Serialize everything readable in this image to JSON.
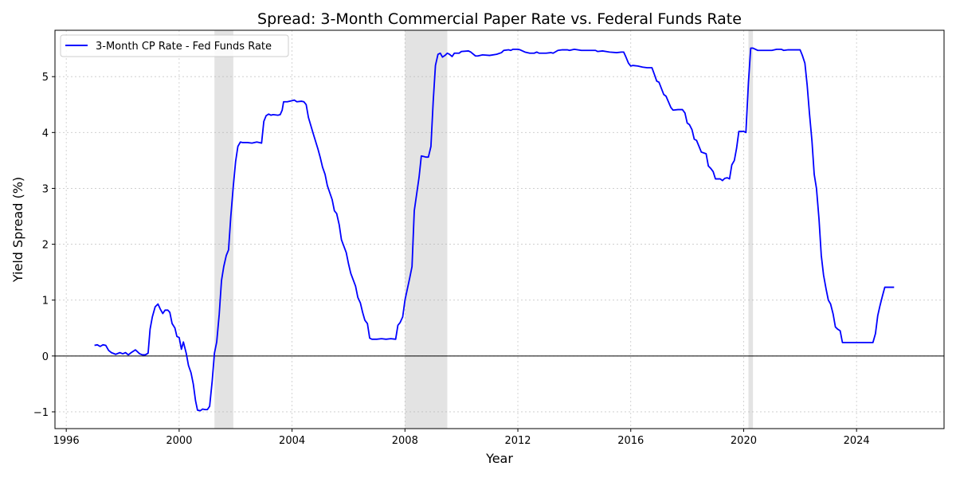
{
  "chart_data": {
    "type": "line",
    "title": "Spread: 3-Month Commercial Paper Rate vs. Federal Funds Rate",
    "xlabel": "Year",
    "ylabel": "Yield Spread (%)",
    "xlim": [
      1995.6,
      2027.1
    ],
    "ylim": [
      -1.3,
      5.83
    ],
    "x_ticks": [
      1996,
      2000,
      2004,
      2008,
      2012,
      2016,
      2020,
      2024
    ],
    "y_ticks": [
      -1,
      0,
      1,
      2,
      3,
      4,
      5
    ],
    "y_tick_labels": [
      "−1",
      "0",
      "1",
      "2",
      "3",
      "4",
      "5"
    ],
    "grid": true,
    "zero_line": 0,
    "legend_position": "upper-left",
    "shaded_regions": [
      {
        "start": 2001.25,
        "end": 2001.92
      },
      {
        "start": 2008.0,
        "end": 2009.5
      },
      {
        "start": 2020.17,
        "end": 2020.33
      }
    ],
    "series": [
      {
        "name": "3-Month CP Rate - Fed Funds Rate",
        "color": "#0000ff",
        "points": [
          [
            1997.0,
            0.19
          ],
          [
            1997.1,
            0.2
          ],
          [
            1997.2,
            0.17
          ],
          [
            1997.3,
            0.2
          ],
          [
            1997.4,
            0.19
          ],
          [
            1997.5,
            0.1
          ],
          [
            1997.6,
            0.06
          ],
          [
            1997.75,
            0.03
          ],
          [
            1997.9,
            0.06
          ],
          [
            1998.0,
            0.04
          ],
          [
            1998.1,
            0.06
          ],
          [
            1998.2,
            0.02
          ],
          [
            1998.3,
            0.06
          ],
          [
            1998.45,
            0.11
          ],
          [
            1998.6,
            0.04
          ],
          [
            1998.7,
            0.02
          ],
          [
            1998.8,
            0.02
          ],
          [
            1998.9,
            0.05
          ],
          [
            1998.97,
            0.48
          ],
          [
            1999.05,
            0.7
          ],
          [
            1999.15,
            0.88
          ],
          [
            1999.25,
            0.93
          ],
          [
            1999.33,
            0.84
          ],
          [
            1999.42,
            0.76
          ],
          [
            1999.5,
            0.82
          ],
          [
            1999.6,
            0.82
          ],
          [
            1999.67,
            0.78
          ],
          [
            1999.75,
            0.58
          ],
          [
            1999.85,
            0.5
          ],
          [
            1999.92,
            0.35
          ],
          [
            2000.0,
            0.33
          ],
          [
            2000.08,
            0.12
          ],
          [
            2000.15,
            0.25
          ],
          [
            2000.25,
            0.05
          ],
          [
            2000.33,
            -0.17
          ],
          [
            2000.42,
            -0.3
          ],
          [
            2000.5,
            -0.5
          ],
          [
            2000.58,
            -0.8
          ],
          [
            2000.65,
            -0.97
          ],
          [
            2000.75,
            -0.98
          ],
          [
            2000.83,
            -0.95
          ],
          [
            2000.92,
            -0.96
          ],
          [
            2001.0,
            -0.96
          ],
          [
            2001.08,
            -0.9
          ],
          [
            2001.17,
            -0.45
          ],
          [
            2001.25,
            0.05
          ],
          [
            2001.33,
            0.25
          ],
          [
            2001.42,
            0.75
          ],
          [
            2001.5,
            1.35
          ],
          [
            2001.58,
            1.6
          ],
          [
            2001.67,
            1.8
          ],
          [
            2001.75,
            1.9
          ],
          [
            2001.83,
            2.5
          ],
          [
            2001.92,
            3.05
          ],
          [
            2002.0,
            3.48
          ],
          [
            2002.08,
            3.75
          ],
          [
            2002.17,
            3.83
          ],
          [
            2002.25,
            3.82
          ],
          [
            2002.42,
            3.82
          ],
          [
            2002.58,
            3.81
          ],
          [
            2002.75,
            3.83
          ],
          [
            2002.85,
            3.82
          ],
          [
            2002.92,
            3.81
          ],
          [
            2003.0,
            4.2
          ],
          [
            2003.08,
            4.3
          ],
          [
            2003.17,
            4.33
          ],
          [
            2003.25,
            4.31
          ],
          [
            2003.33,
            4.32
          ],
          [
            2003.5,
            4.31
          ],
          [
            2003.58,
            4.32
          ],
          [
            2003.65,
            4.4
          ],
          [
            2003.7,
            4.55
          ],
          [
            2003.83,
            4.55
          ],
          [
            2004.0,
            4.57
          ],
          [
            2004.08,
            4.58
          ],
          [
            2004.17,
            4.55
          ],
          [
            2004.33,
            4.56
          ],
          [
            2004.42,
            4.55
          ],
          [
            2004.5,
            4.5
          ],
          [
            2004.58,
            4.27
          ],
          [
            2004.75,
            3.98
          ],
          [
            2004.92,
            3.7
          ],
          [
            2005.0,
            3.55
          ],
          [
            2005.08,
            3.38
          ],
          [
            2005.17,
            3.25
          ],
          [
            2005.25,
            3.05
          ],
          [
            2005.42,
            2.8
          ],
          [
            2005.5,
            2.6
          ],
          [
            2005.58,
            2.55
          ],
          [
            2005.67,
            2.35
          ],
          [
            2005.75,
            2.08
          ],
          [
            2005.92,
            1.85
          ],
          [
            2006.0,
            1.65
          ],
          [
            2006.08,
            1.48
          ],
          [
            2006.25,
            1.25
          ],
          [
            2006.33,
            1.05
          ],
          [
            2006.42,
            0.95
          ],
          [
            2006.5,
            0.78
          ],
          [
            2006.58,
            0.64
          ],
          [
            2006.67,
            0.58
          ],
          [
            2006.75,
            0.32
          ],
          [
            2006.83,
            0.3
          ],
          [
            2007.0,
            0.3
          ],
          [
            2007.17,
            0.31
          ],
          [
            2007.33,
            0.3
          ],
          [
            2007.5,
            0.31
          ],
          [
            2007.67,
            0.3
          ],
          [
            2007.75,
            0.55
          ],
          [
            2007.83,
            0.6
          ],
          [
            2007.92,
            0.7
          ],
          [
            2008.0,
            1.0
          ],
          [
            2008.17,
            1.4
          ],
          [
            2008.25,
            1.6
          ],
          [
            2008.33,
            2.6
          ],
          [
            2008.5,
            3.2
          ],
          [
            2008.58,
            3.58
          ],
          [
            2008.67,
            3.57
          ],
          [
            2008.75,
            3.56
          ],
          [
            2008.83,
            3.56
          ],
          [
            2008.92,
            3.75
          ],
          [
            2009.0,
            4.55
          ],
          [
            2009.08,
            5.2
          ],
          [
            2009.17,
            5.4
          ],
          [
            2009.25,
            5.42
          ],
          [
            2009.33,
            5.35
          ],
          [
            2009.42,
            5.38
          ],
          [
            2009.5,
            5.42
          ],
          [
            2009.58,
            5.4
          ],
          [
            2009.67,
            5.36
          ],
          [
            2009.75,
            5.42
          ],
          [
            2009.92,
            5.42
          ],
          [
            2010.0,
            5.45
          ],
          [
            2010.25,
            5.46
          ],
          [
            2010.33,
            5.44
          ],
          [
            2010.5,
            5.37
          ],
          [
            2010.58,
            5.37
          ],
          [
            2010.75,
            5.39
          ],
          [
            2011.0,
            5.38
          ],
          [
            2011.25,
            5.4
          ],
          [
            2011.42,
            5.43
          ],
          [
            2011.5,
            5.47
          ],
          [
            2011.67,
            5.48
          ],
          [
            2011.75,
            5.47
          ],
          [
            2011.83,
            5.49
          ],
          [
            2012.0,
            5.49
          ],
          [
            2012.08,
            5.48
          ],
          [
            2012.25,
            5.44
          ],
          [
            2012.42,
            5.42
          ],
          [
            2012.58,
            5.42
          ],
          [
            2012.67,
            5.44
          ],
          [
            2012.75,
            5.42
          ],
          [
            2013.0,
            5.42
          ],
          [
            2013.17,
            5.43
          ],
          [
            2013.25,
            5.42
          ],
          [
            2013.42,
            5.47
          ],
          [
            2013.58,
            5.48
          ],
          [
            2013.75,
            5.48
          ],
          [
            2013.83,
            5.47
          ],
          [
            2014.0,
            5.49
          ],
          [
            2014.25,
            5.47
          ],
          [
            2014.42,
            5.47
          ],
          [
            2014.58,
            5.47
          ],
          [
            2014.75,
            5.47
          ],
          [
            2014.83,
            5.45
          ],
          [
            2015.0,
            5.46
          ],
          [
            2015.25,
            5.44
          ],
          [
            2015.5,
            5.43
          ],
          [
            2015.67,
            5.44
          ],
          [
            2015.75,
            5.44
          ],
          [
            2015.83,
            5.35
          ],
          [
            2015.92,
            5.24
          ],
          [
            2016.0,
            5.19
          ],
          [
            2016.08,
            5.2
          ],
          [
            2016.25,
            5.19
          ],
          [
            2016.42,
            5.17
          ],
          [
            2016.58,
            5.16
          ],
          [
            2016.75,
            5.16
          ],
          [
            2016.83,
            5.05
          ],
          [
            2016.92,
            4.92
          ],
          [
            2017.0,
            4.9
          ],
          [
            2017.17,
            4.68
          ],
          [
            2017.25,
            4.65
          ],
          [
            2017.42,
            4.45
          ],
          [
            2017.5,
            4.4
          ],
          [
            2017.67,
            4.41
          ],
          [
            2017.83,
            4.41
          ],
          [
            2017.92,
            4.35
          ],
          [
            2018.0,
            4.17
          ],
          [
            2018.08,
            4.14
          ],
          [
            2018.17,
            4.05
          ],
          [
            2018.25,
            3.88
          ],
          [
            2018.33,
            3.86
          ],
          [
            2018.42,
            3.75
          ],
          [
            2018.5,
            3.65
          ],
          [
            2018.67,
            3.62
          ],
          [
            2018.75,
            3.4
          ],
          [
            2018.83,
            3.36
          ],
          [
            2018.92,
            3.3
          ],
          [
            2019.0,
            3.17
          ],
          [
            2019.17,
            3.17
          ],
          [
            2019.25,
            3.14
          ],
          [
            2019.33,
            3.18
          ],
          [
            2019.42,
            3.19
          ],
          [
            2019.5,
            3.17
          ],
          [
            2019.58,
            3.42
          ],
          [
            2019.67,
            3.5
          ],
          [
            2019.75,
            3.72
          ],
          [
            2019.83,
            4.02
          ],
          [
            2020.0,
            4.02
          ],
          [
            2020.08,
            4.0
          ],
          [
            2020.17,
            4.9
          ],
          [
            2020.25,
            5.51
          ],
          [
            2020.33,
            5.51
          ],
          [
            2020.5,
            5.47
          ],
          [
            2020.67,
            5.47
          ],
          [
            2021.0,
            5.47
          ],
          [
            2021.17,
            5.49
          ],
          [
            2021.33,
            5.49
          ],
          [
            2021.42,
            5.47
          ],
          [
            2021.58,
            5.48
          ],
          [
            2021.75,
            5.48
          ],
          [
            2021.92,
            5.48
          ],
          [
            2022.0,
            5.48
          ],
          [
            2022.08,
            5.38
          ],
          [
            2022.17,
            5.24
          ],
          [
            2022.25,
            4.85
          ],
          [
            2022.33,
            4.35
          ],
          [
            2022.42,
            3.85
          ],
          [
            2022.5,
            3.25
          ],
          [
            2022.58,
            3.0
          ],
          [
            2022.67,
            2.45
          ],
          [
            2022.75,
            1.8
          ],
          [
            2022.83,
            1.45
          ],
          [
            2022.92,
            1.2
          ],
          [
            2023.0,
            1.0
          ],
          [
            2023.08,
            0.93
          ],
          [
            2023.17,
            0.75
          ],
          [
            2023.25,
            0.52
          ],
          [
            2023.33,
            0.48
          ],
          [
            2023.42,
            0.45
          ],
          [
            2023.5,
            0.24
          ],
          [
            2023.67,
            0.24
          ],
          [
            2024.0,
            0.24
          ],
          [
            2024.33,
            0.24
          ],
          [
            2024.58,
            0.24
          ],
          [
            2024.67,
            0.4
          ],
          [
            2024.75,
            0.72
          ],
          [
            2024.83,
            0.9
          ],
          [
            2024.92,
            1.08
          ],
          [
            2025.0,
            1.23
          ],
          [
            2025.17,
            1.23
          ],
          [
            2025.33,
            1.23
          ]
        ]
      }
    ]
  }
}
